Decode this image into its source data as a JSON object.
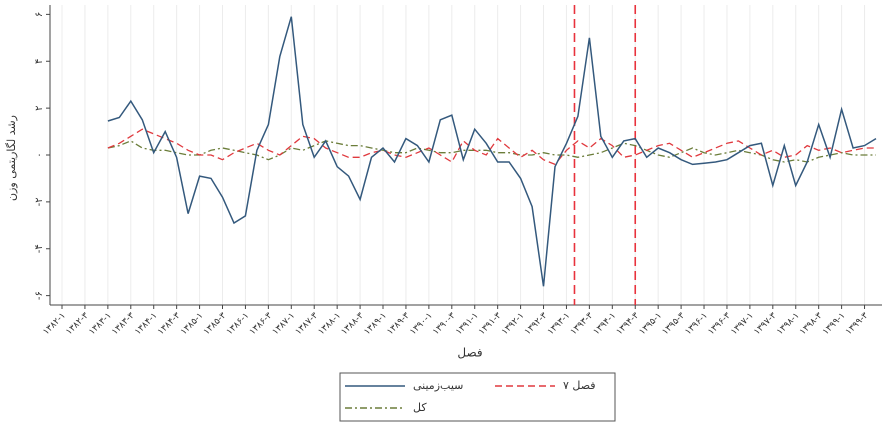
{
  "chart_data": {
    "type": "line",
    "x_label": "فصل",
    "y_label": "رشد لگاریتمی وزن",
    "categories": [
      "۱۳۸۲-۱",
      null,
      "۱۳۸۲-۳",
      null,
      "۱۳۸۳-۱",
      null,
      "۱۳۸۳-۳",
      null,
      "۱۳۸۴-۱",
      null,
      "۱۳۸۴-۳",
      null,
      "۱۳۸۵-۱",
      null,
      "۱۳۸۵-۳",
      null,
      "۱۳۸۶-۱",
      null,
      "۱۳۸۶-۳",
      null,
      "۱۳۸۷-۱",
      null,
      "۱۳۸۷-۳",
      null,
      "۱۳۸۸-۱",
      null,
      "۱۳۸۸-۳",
      null,
      "۱۳۸۹-۱",
      null,
      "۱۳۸۹-۳",
      null,
      "۱۳۹۰-۱",
      null,
      "۱۳۹۰-۳",
      null,
      "۱۳۹۱-۱",
      null,
      "۱۳۹۱-۳",
      null,
      "۱۳۹۲-۱",
      null,
      "۱۳۹۲-۳",
      null,
      "۱۳۹۳-۱",
      null,
      "۱۳۹۳-۳",
      null,
      "۱۳۹۴-۱",
      null,
      "۱۳۹۴-۳",
      null,
      "۱۳۹۵-۱",
      null,
      "۱۳۹۵-۳",
      null,
      "۱۳۹۶-۱",
      null,
      "۱۳۹۶-۳",
      null,
      "۱۳۹۷-۱",
      null,
      "۱۳۹۷-۳",
      null,
      "۱۳۹۸-۱",
      null,
      "۱۳۹۸-۳",
      null,
      "۱۳۹۹-۱",
      null,
      "۱۳۹۹-۳",
      null
    ],
    "series": [
      {
        "name": "سیب‌زمینی",
        "color": "#34597d",
        "dash": "",
        "values": [
          null,
          null,
          null,
          null,
          1.45,
          1.6,
          2.3,
          1.5,
          0.1,
          1.0,
          -0.1,
          -2.5,
          -0.9,
          -1.0,
          -1.8,
          -2.9,
          -2.6,
          0.2,
          1.3,
          4.2,
          5.9,
          1.3,
          -0.1,
          0.6,
          -0.5,
          -0.9,
          -1.9,
          -0.1,
          0.3,
          -0.3,
          0.7,
          0.4,
          -0.3,
          1.5,
          1.7,
          -0.2,
          1.1,
          0.5,
          -0.3,
          -0.3,
          -1.0,
          -2.2,
          -5.6,
          -0.5,
          0.5,
          1.65,
          5.0,
          0.8,
          -0.1,
          0.6,
          0.7,
          -0.1,
          0.3,
          0.1,
          -0.2,
          -0.4,
          -0.35,
          -0.3,
          -0.2,
          0.1,
          0.4,
          0.5,
          -1.3,
          0.4,
          -1.3,
          -0.3,
          1.3,
          -0.1,
          1.95,
          0.3,
          0.4,
          0.7
        ]
      },
      {
        "name": "فصل ۷",
        "color": "#e0393e",
        "dash": "7 4",
        "values": [
          null,
          null,
          null,
          null,
          0.3,
          0.5,
          0.8,
          1.1,
          0.9,
          0.7,
          0.5,
          0.2,
          0,
          0,
          -0.2,
          0.1,
          0.3,
          0.5,
          0.2,
          0,
          0.4,
          0.8,
          0.7,
          0.3,
          0.1,
          -0.1,
          -0.1,
          0.1,
          0.2,
          0,
          -0.1,
          0.1,
          0.3,
          0,
          -0.3,
          0.6,
          0.2,
          0,
          0.7,
          0.3,
          -0.1,
          0.2,
          -0.2,
          -0.4,
          0.2,
          0.6,
          0.3,
          0.7,
          0.4,
          -0.1,
          0,
          0.2,
          0.4,
          0.5,
          0.2,
          -0.1,
          0.1,
          0.3,
          0.5,
          0.6,
          0.3,
          0,
          0.2,
          -0.1,
          0,
          0.4,
          0.2,
          0.3,
          0.1,
          0.2,
          0.3,
          0.3
        ]
      },
      {
        "name": "کل",
        "color": "#6b7d3a",
        "dash": "7 3 2 3",
        "values": [
          null,
          null,
          null,
          null,
          0.3,
          0.4,
          0.6,
          0.3,
          0.2,
          0.2,
          0.1,
          0,
          0,
          0.2,
          0.3,
          0.2,
          0.1,
          0,
          -0.2,
          0,
          0.3,
          0.2,
          0.4,
          0.6,
          0.5,
          0.4,
          0.4,
          0.3,
          0.2,
          0.1,
          0.1,
          0.3,
          0.2,
          0.1,
          0.1,
          0.2,
          0.2,
          0.2,
          0.1,
          0.1,
          0,
          0,
          0.1,
          0,
          0,
          -0.1,
          0,
          0.1,
          0.3,
          0.5,
          0.4,
          0.2,
          0,
          -0.1,
          0.1,
          0.3,
          0.1,
          0,
          0.1,
          0.2,
          0.1,
          0,
          -0.2,
          -0.3,
          -0.2,
          -0.3,
          -0.1,
          0,
          0.1,
          0,
          0,
          0
        ]
      }
    ],
    "vlines": [
      44.7,
      50
    ],
    "vline_color": "#e8323c",
    "ylim": [
      -6.4,
      6.4
    ],
    "yticks": [
      {
        "value": 6,
        "label": "۶"
      },
      {
        "value": 4,
        "label": "۴"
      },
      {
        "value": 2,
        "label": "۲"
      },
      {
        "value": 0,
        "label": "۰"
      },
      {
        "value": -2,
        "label": "-۲"
      },
      {
        "value": -4,
        "label": "-۴"
      },
      {
        "value": -6,
        "label": "-۶"
      }
    ],
    "grid": true
  }
}
